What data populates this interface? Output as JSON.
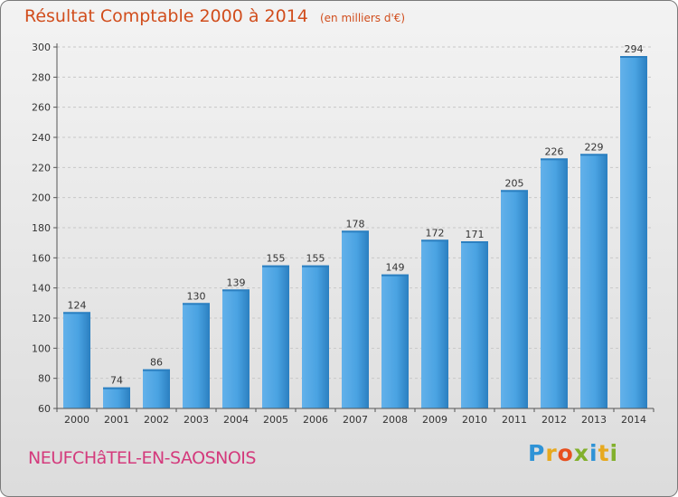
{
  "header": {
    "title": "Résultat Comptable 2000 à 2014",
    "subtitle": "(en milliers d'€)"
  },
  "footer": {
    "place": "NEUFCHâTEL-EN-SAOSNOIS",
    "logo": "Proxiti"
  },
  "colors": {
    "bar": "#3f9ad9",
    "bar_light": "#63b1ea",
    "bar_dark": "#2b7fc0",
    "title": "#d14d1c",
    "place": "#d43a7c"
  },
  "chart_data": {
    "type": "bar",
    "categories": [
      "2000",
      "2001",
      "2002",
      "2003",
      "2004",
      "2005",
      "2006",
      "2007",
      "2008",
      "2009",
      "2010",
      "2011",
      "2012",
      "2013",
      "2014"
    ],
    "values": [
      124,
      74,
      86,
      130,
      139,
      155,
      155,
      178,
      149,
      172,
      171,
      205,
      226,
      229,
      294
    ],
    "data_labels": [
      "124",
      "74",
      "86",
      "130",
      "139",
      "155",
      "155",
      "178",
      "149",
      "172",
      "171",
      "205",
      "226",
      "229",
      "294"
    ],
    "ylim": [
      60,
      300
    ],
    "yticks": [
      "60",
      "80",
      "100",
      "120",
      "140",
      "160",
      "180",
      "200",
      "220",
      "240",
      "260",
      "280",
      "300"
    ],
    "grid": true,
    "title": "Résultat Comptable 2000 à 2014",
    "xlabel": "",
    "ylabel": ""
  }
}
